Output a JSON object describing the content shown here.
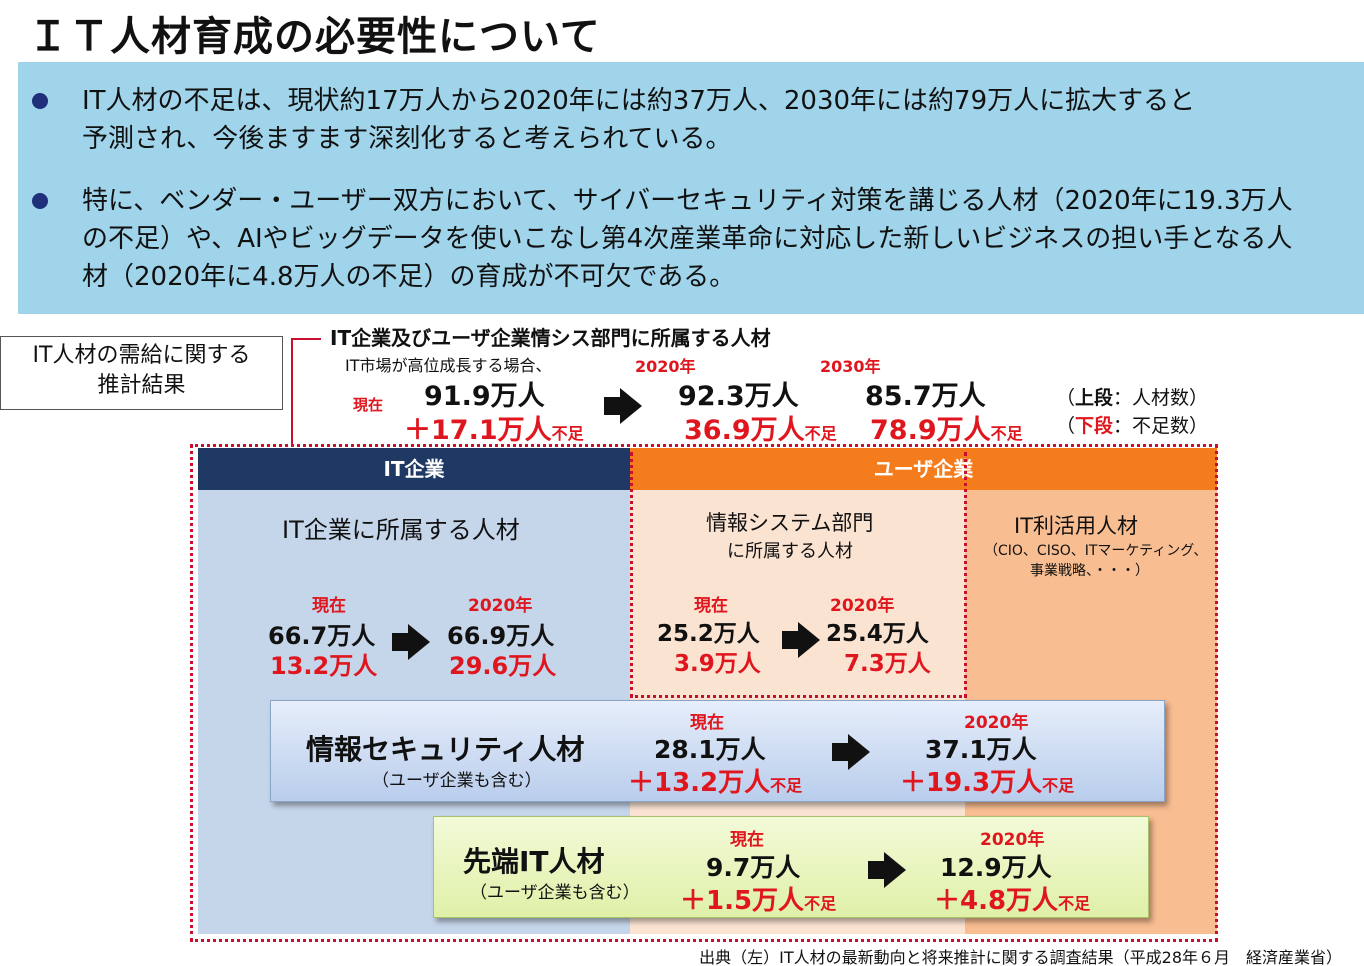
{
  "title": "ＩＴ人材育成の必要性について",
  "bullets": [
    {
      "line1": "IT人材の不足は、現状約17万人から2020年には約37万人、2030年には約79万人に拡大すると",
      "line2": "予測され、今後ますます深刻化すると考えられている。"
    },
    {
      "line1": "特に、ベンダー・ユーザー双方において、サイバーセキュリティ対策を講じる人材（2020年に19.3万人",
      "line2": "の不足）や、AIやビッグデータを使いこなし第4次産業革命に対応した新しいビジネスの担い手となる人",
      "line3": "材（2020年に4.8万人の不足）の育成が不可欠である。"
    }
  ],
  "estimate_box": {
    "line1": "IT人材の需給に関する",
    "line2": "推計結果"
  },
  "top": {
    "heading": "IT企業及びユーザ企業情シス部門に所属する人材",
    "subheading": "IT市場が高位成長する場合、",
    "now_label": "現在",
    "now_value": "91.9万人",
    "now_shortage": "＋17.1万人",
    "y2020_label": "2020年",
    "y2020_value": "92.3万人",
    "y2020_shortage": "36.9万人",
    "y2030_label": "2030年",
    "y2030_value": "85.7万人",
    "y2030_shortage": "78.9万人",
    "shortage_suffix": "不足",
    "legend_upper_open": "（",
    "legend_upper_bold": "上段",
    "legend_upper_rest": "：人材数）",
    "legend_lower_open": "（",
    "legend_lower_bold": "下段",
    "legend_lower_rest": "：不足数）"
  },
  "headers": {
    "it": "IT企業",
    "user": "ユーザ企業"
  },
  "it_col": {
    "title": "IT企業に所属する人材",
    "now_label": "現在",
    "now_value": "66.7万人",
    "now_shortage": "13.2万人",
    "y2020_label": "2020年",
    "y2020_value": "66.9万人",
    "y2020_shortage": "29.6万人"
  },
  "info_col": {
    "title1": "情報システム部門",
    "title2": "に所属する人材",
    "now_label": "現在",
    "now_value": "25.2万人",
    "now_shortage": "3.9万人",
    "y2020_label": "2020年",
    "y2020_value": "25.4万人",
    "y2020_shortage": "7.3万人"
  },
  "util_col": {
    "title": "IT利活用人材",
    "sub1": "（CIO、CISO、ITマーケティング、",
    "sub2": "事業戦略、・・・）"
  },
  "security": {
    "title": "情報セキュリティ人材",
    "sub": "（ユーザ企業も含む）",
    "now_label": "現在",
    "now_value": "28.1万人",
    "now_shortage": "＋13.2万人",
    "y2020_label": "2020年",
    "y2020_value": "37.1万人",
    "y2020_shortage": "＋19.3万人",
    "suffix": "不足"
  },
  "advanced": {
    "title": "先端IT人材",
    "sub": "（ユーザ企業も含む）",
    "now_label": "現在",
    "now_value": "9.7万人",
    "now_shortage": "＋1.5万人",
    "y2020_label": "2020年",
    "y2020_value": "12.9万人",
    "y2020_shortage": "＋4.8万人",
    "suffix": "不足"
  },
  "source": "出典（左）IT人材の最新動向と将来推計に関する調査結果（平成28年６月　経済産業省）",
  "colors": {
    "blue_box": "#9fd4ea",
    "navy": "#203864",
    "orange": "#f47c1c",
    "red": "#e0161e"
  }
}
